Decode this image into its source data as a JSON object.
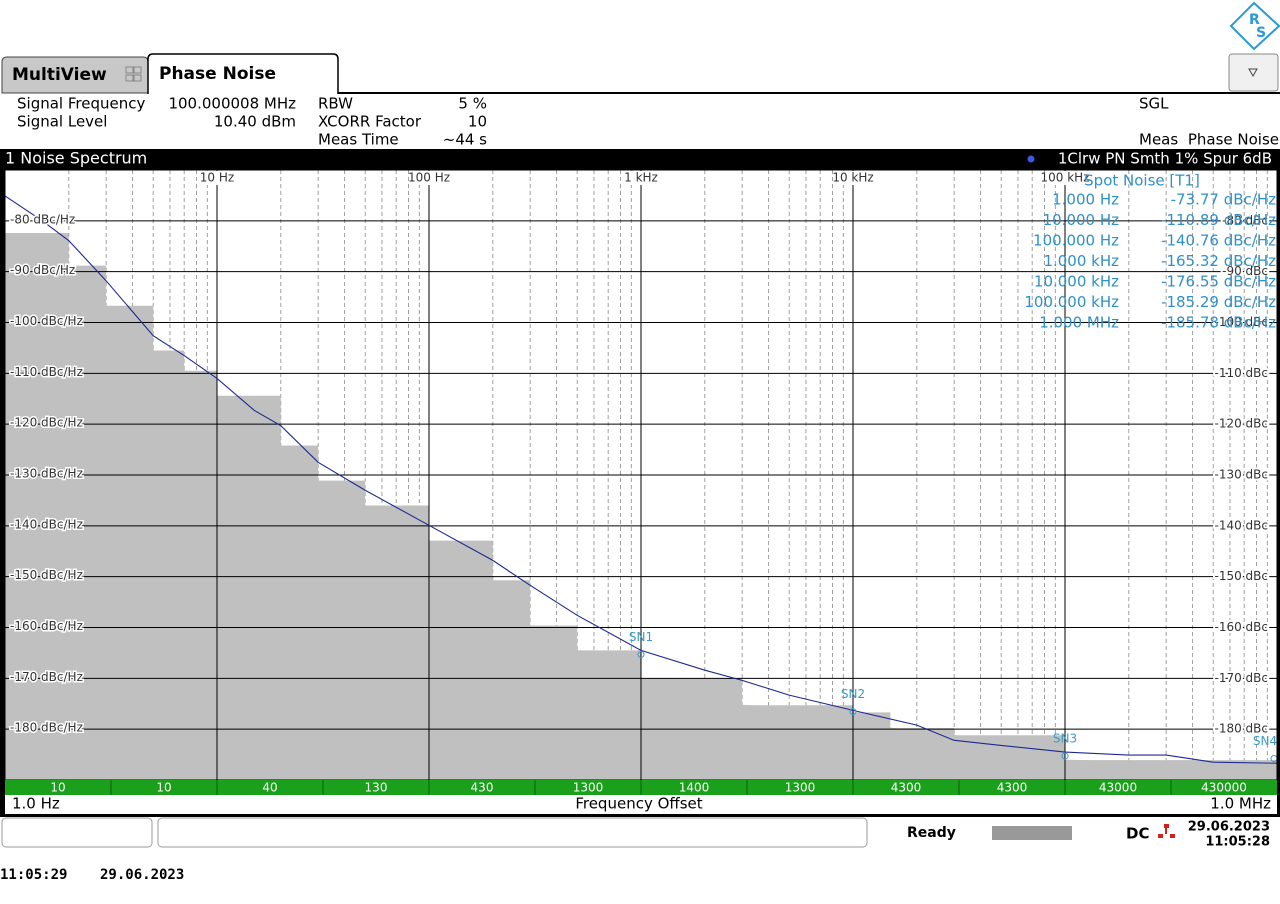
{
  "logo": {
    "r": "R",
    "s": "S"
  },
  "tabs": [
    "MultiView",
    "Phase Noise"
  ],
  "settings": {
    "left": [
      {
        "label": "Signal Frequency",
        "value": "100.000008 MHz"
      },
      {
        "label": "Signal Level",
        "value": "10.40 dBm"
      }
    ],
    "mid": [
      {
        "label": "RBW",
        "value": "5 %"
      },
      {
        "label": "XCORR Factor",
        "value": "10"
      },
      {
        "label": "Meas Time",
        "value": "~44 s"
      }
    ],
    "sgl": "SGL",
    "meas_label": "Meas",
    "meas_value": "Phase Noise"
  },
  "chart_data": {
    "type": "line",
    "title": "1 Noise Spectrum",
    "trace_info": "1Clrw PN Smth 1% Spur 6dB",
    "xscale": "log",
    "xlim": [
      1,
      1000000
    ],
    "ylim": [
      -190,
      -70
    ],
    "y2lim": [
      -190,
      -70
    ],
    "grid": true,
    "minor_grid": true,
    "xticks": [
      {
        "value": 10,
        "label": "10 Hz"
      },
      {
        "value": 100,
        "label": "100 Hz"
      },
      {
        "value": 1000,
        "label": "1 kHz"
      },
      {
        "value": 10000,
        "label": "10 kHz"
      },
      {
        "value": 100000,
        "label": "100 kHz"
      }
    ],
    "yticks": [
      {
        "value": -80,
        "label": "-80 dBc/Hz"
      },
      {
        "value": -90,
        "label": "-90 dBc/Hz"
      },
      {
        "value": -100,
        "label": "-100 dBc/Hz"
      },
      {
        "value": -110,
        "label": "-110 dBc/Hz"
      },
      {
        "value": -120,
        "label": "-120 dBc/Hz"
      },
      {
        "value": -130,
        "label": "-130 dBc/Hz"
      },
      {
        "value": -140,
        "label": "-140 dBc/Hz"
      },
      {
        "value": -150,
        "label": "-150 dBc/Hz"
      },
      {
        "value": -160,
        "label": "-160 dBc/Hz"
      },
      {
        "value": -170,
        "label": "-170 dBc/Hz"
      },
      {
        "value": -180,
        "label": "-180 dBc/Hz"
      }
    ],
    "y2ticks": [
      {
        "value": -80,
        "label": "-80 dBc"
      },
      {
        "value": -90,
        "label": "-90 dBc"
      },
      {
        "value": -100,
        "label": "-100 dBc"
      },
      {
        "value": -110,
        "label": "-110 dBc"
      },
      {
        "value": -120,
        "label": "-120 dBc"
      },
      {
        "value": -130,
        "label": "-130 dBc"
      },
      {
        "value": -140,
        "label": "-140 dBc"
      },
      {
        "value": -150,
        "label": "-150 dBc"
      },
      {
        "value": -160,
        "label": "-160 dBc"
      },
      {
        "value": -170,
        "label": "-170 dBc"
      },
      {
        "value": -180,
        "label": "-180 dBc"
      }
    ],
    "xlabel": "Frequency Offset",
    "x_start_label": "1.0 Hz",
    "x_end_label": "1.0 MHz",
    "series": [
      {
        "style": "area",
        "color": "#c0c0c0",
        "x": [
          1,
          2,
          3,
          5,
          7,
          10,
          20,
          30,
          50,
          100,
          200,
          300,
          500,
          1000,
          3000,
          10000,
          15000,
          30000,
          100000,
          1000000
        ],
        "values": [
          -82.4,
          -88.8,
          -96.7,
          -105.5,
          -109.5,
          -114.4,
          -124.2,
          -131.1,
          -136,
          -142.9,
          -150.7,
          -159.6,
          -164.5,
          -170,
          -175.3,
          -176.7,
          -179.8,
          -181.2,
          -186.1,
          -187.1
        ]
      },
      {
        "style": "line",
        "color": "#1c2a90",
        "x": [
          1,
          1.5,
          2,
          3,
          5,
          7,
          10,
          15,
          20,
          30,
          50,
          100,
          200,
          300,
          500,
          1000,
          2000,
          3000,
          5000,
          10000,
          20000,
          30000,
          50000,
          100000,
          200000,
          300000,
          500000,
          1000000
        ],
        "values": [
          -75.1,
          -80,
          -83.9,
          -91.8,
          -102.6,
          -106.5,
          -111,
          -117.3,
          -120.3,
          -127.5,
          -133,
          -139.9,
          -146.8,
          -151.7,
          -157.6,
          -164.5,
          -168.4,
          -170.4,
          -173.3,
          -176.3,
          -179.2,
          -182.2,
          -183.2,
          -184.5,
          -185.1,
          -185.1,
          -186.5,
          -186.7
        ]
      }
    ],
    "markers": [
      {
        "label": "SN1",
        "x": 1000,
        "y": -165.32
      },
      {
        "label": "SN2",
        "x": 10000,
        "y": -176.55
      },
      {
        "label": "SN3",
        "x": 100000,
        "y": -185.29
      },
      {
        "label": "SN4",
        "x": 1000000,
        "y": -185.78
      }
    ],
    "segment_color": "#1aa01a",
    "segments": [
      10,
      10,
      40,
      130,
      430,
      1300,
      1400,
      1300,
      4300,
      4300,
      43000,
      430000
    ],
    "spot_noise": {
      "title": "Spot Noise [T1]",
      "rows": [
        [
          "1.000 Hz",
          "-73.77 dBc/Hz"
        ],
        [
          "10.000 Hz",
          "-110.89 dBc/Hz"
        ],
        [
          "100.000 Hz",
          "-140.76 dBc/Hz"
        ],
        [
          "1.000 kHz",
          "-165.32 dBc/Hz"
        ],
        [
          "10.000 kHz",
          "-176.55 dBc/Hz"
        ],
        [
          "100.000 kHz",
          "-185.29 dBc/Hz"
        ],
        [
          "1.000 MHz",
          "-185.78 dBc/Hz"
        ]
      ]
    }
  },
  "status": {
    "ready": "Ready",
    "dc": "DC",
    "date": "29.06.2023",
    "time": "11:05:28"
  },
  "footer": {
    "time": "11:05:29",
    "date": "29.06.2023"
  }
}
